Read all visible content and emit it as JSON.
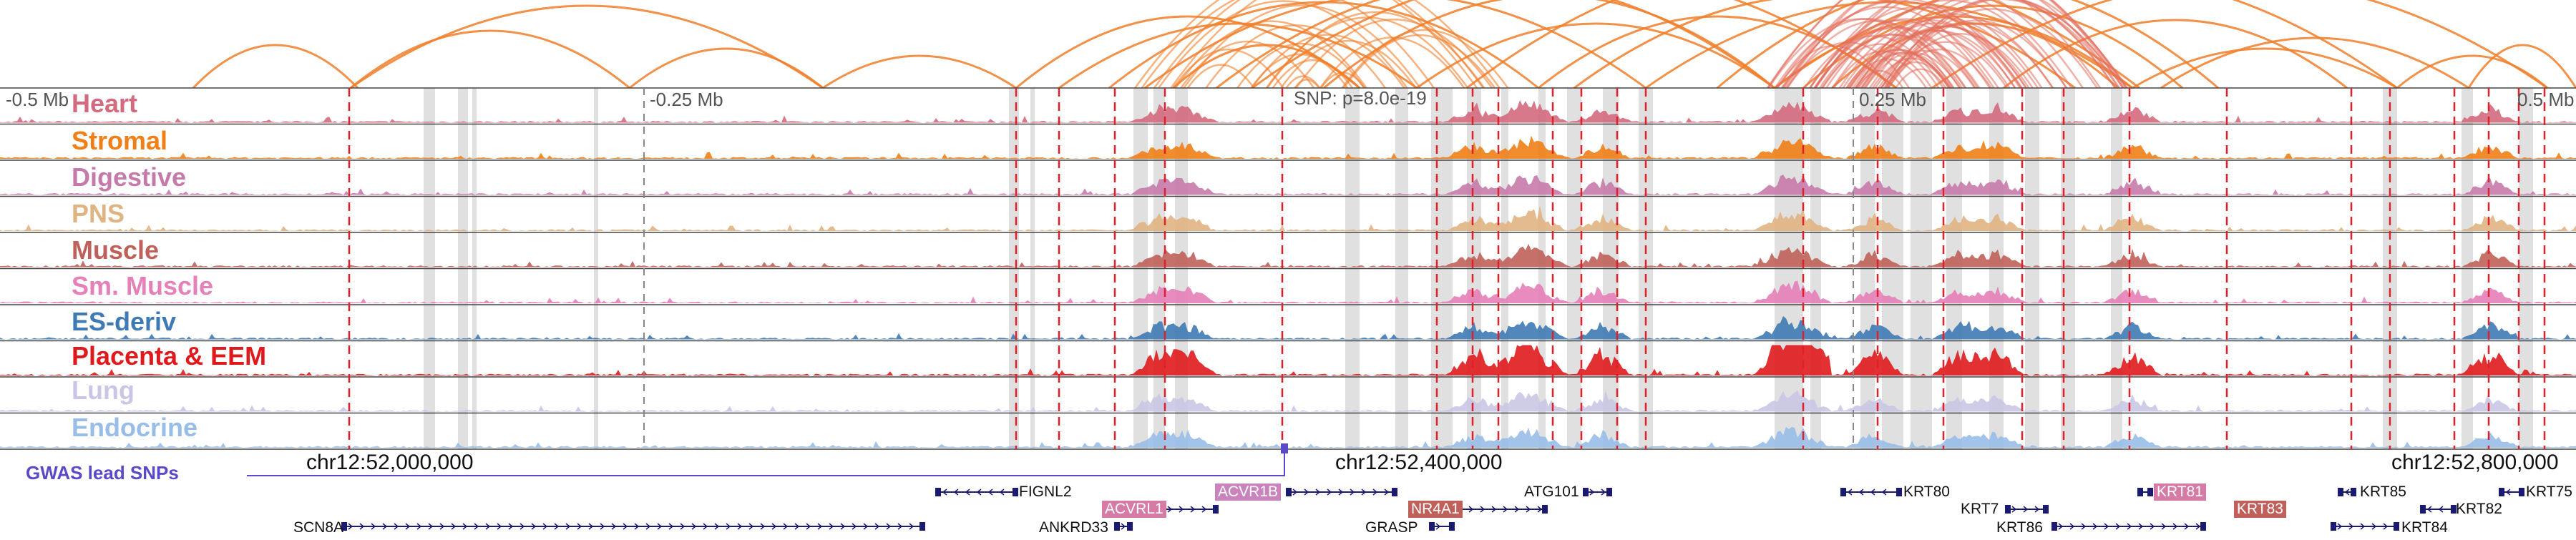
{
  "scale": {
    "left_label": "-0.5 Mb",
    "mid_left_label": "-0.25 Mb",
    "snp_label": "SNP: p=8.0e-19",
    "mid_right_label": "0.25 Mb",
    "right_label": "0.5 Mb"
  },
  "tracks": [
    {
      "name": "Heart",
      "color": "#d46a7e"
    },
    {
      "name": "Stromal",
      "color": "#f07f17"
    },
    {
      "name": "Digestive",
      "color": "#c67aaa"
    },
    {
      "name": "PNS",
      "color": "#e0b482"
    },
    {
      "name": "Muscle",
      "color": "#c0605a"
    },
    {
      "name": "Sm. Muscle",
      "color": "#e680b8"
    },
    {
      "name": "ES-deriv",
      "color": "#3e7ab3"
    },
    {
      "name": "Placenta & EEM",
      "color": "#e01a1c"
    },
    {
      "name": "Lung",
      "color": "#cac6e6"
    },
    {
      "name": "Endocrine",
      "color": "#98bde8"
    }
  ],
  "coordinates": {
    "left": "chr12:52,000,000",
    "middle": "chr12:52,400,000",
    "right": "chr12:52,800,000"
  },
  "gwas": {
    "label": "GWAS lead SNPs"
  },
  "genes": [
    {
      "name": "FIGNL2",
      "highlight": false
    },
    {
      "name": "ACVRL1",
      "highlight": true,
      "color": "#d67aa6"
    },
    {
      "name": "ACVR1B",
      "highlight": true,
      "color": "#c984bd"
    },
    {
      "name": "ATG101",
      "highlight": false
    },
    {
      "name": "KRT80",
      "highlight": false
    },
    {
      "name": "KRT81",
      "highlight": true,
      "color": "#d67aa6"
    },
    {
      "name": "KRT85",
      "highlight": false
    },
    {
      "name": "KRT75",
      "highlight": false
    },
    {
      "name": "SCN8A",
      "highlight": false
    },
    {
      "name": "ANKRD33",
      "highlight": false
    },
    {
      "name": "NR4A1",
      "highlight": true,
      "color": "#c0605a"
    },
    {
      "name": "GRASP",
      "highlight": false
    },
    {
      "name": "KRT7",
      "highlight": false
    },
    {
      "name": "KRT86",
      "highlight": false
    },
    {
      "name": "KRT83",
      "highlight": true,
      "color": "#c0605a"
    },
    {
      "name": "KRT82",
      "highlight": false
    },
    {
      "name": "KRT84",
      "highlight": false
    }
  ],
  "colors": {
    "arc": "#f07f2a",
    "arc_dense": "#e2705f",
    "dashed_marker": "#e0202a",
    "gray_band": "#d6d6d6",
    "gwas": "#5a49c8",
    "gene": "#1a1a6e"
  }
}
